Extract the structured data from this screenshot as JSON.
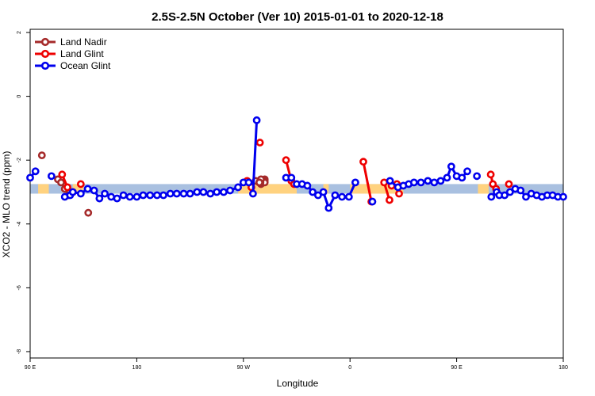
{
  "chart_data": {
    "type": "line",
    "title": "2.5S-2.5N October (Ver 10)   2015-01-01 to 2020-12-18",
    "xlabel": "Longitude",
    "ylabel": "XCO2 - MLO trend (ppm)",
    "xlim": [
      0,
      1
    ],
    "ylim": [
      -8.2,
      2.1
    ],
    "x_ticks": [
      {
        "pos": 0.0,
        "label": "90 E"
      },
      {
        "pos": 0.2,
        "label": "180"
      },
      {
        "pos": 0.4,
        "label": "90 W"
      },
      {
        "pos": 0.6,
        "label": "0"
      },
      {
        "pos": 0.8,
        "label": "90 E"
      },
      {
        "pos": 1.0,
        "label": "180"
      }
    ],
    "y_ticks": [
      {
        "value": 2,
        "label": "2"
      },
      {
        "value": 0,
        "label": "0"
      },
      {
        "value": -2,
        "label": "-2"
      },
      {
        "value": -4,
        "label": "-4"
      },
      {
        "value": -6,
        "label": "-6"
      },
      {
        "value": -8,
        "label": "-8"
      }
    ],
    "legend": {
      "position": "top-left"
    },
    "band": {
      "ymin": -3.05,
      "ymax": -2.75,
      "color": "#a9c0e0",
      "highlight_color": "#ffd27f"
    },
    "series": [
      {
        "name": "Land Nadir",
        "color": "#a52a2a",
        "segments": [
          [
            [
              0.022,
              -1.85
            ]
          ],
          [
            [
              0.052,
              -2.6
            ],
            [
              0.058,
              -2.7
            ],
            [
              0.065,
              -2.9
            ],
            [
              0.072,
              -3.1
            ]
          ],
          [
            [
              0.109,
              -3.65
            ]
          ],
          [
            [
              0.423,
              -2.65
            ],
            [
              0.433,
              -2.75
            ]
          ],
          [
            [
              0.432,
              -2.7
            ],
            [
              0.44,
              -2.6
            ]
          ],
          [
            [
              0.43,
              -2.7
            ],
            [
              0.44,
              -2.65
            ]
          ],
          [
            [
              0.43,
              -2.7
            ]
          ],
          [
            [
              0.44,
              -2.7
            ]
          ],
          [
            [
              0.431,
              -2.7
            ]
          ],
          [
            [
              0.432,
              -2.7
            ],
            [
              0.433,
              -2.6
            ]
          ],
          [
            [
              0.43,
              -2.7
            ],
            [
              0.43,
              -2.7
            ]
          ],
          [
            [
              0.43,
              -2.7
            ]
          ]
        ]
      },
      {
        "name": "Land Glint",
        "color": "#ee0000",
        "segments": [
          [
            [
              0.06,
              -2.45
            ],
            [
              0.07,
              -2.85
            ],
            [
              0.08,
              -3.0
            ]
          ],
          [
            [
              0.095,
              -2.75
            ]
          ],
          [
            [
              0.407,
              -2.65
            ],
            [
              0.415,
              -2.85
            ]
          ],
          [
            [
              0.431,
              -1.45
            ]
          ],
          [
            [
              0.48,
              -2.0
            ],
            [
              0.49,
              -2.65
            ]
          ],
          [
            [
              0.495,
              -2.75
            ]
          ],
          [
            [
              0.625,
              -2.05
            ],
            [
              0.64,
              -3.3
            ]
          ],
          [
            [
              0.664,
              -2.7
            ],
            [
              0.674,
              -3.25
            ]
          ],
          [
            [
              0.678,
              -2.8
            ],
            [
              0.688,
              -2.75
            ]
          ],
          [
            [
              0.692,
              -3.05
            ]
          ],
          [
            [
              0.864,
              -2.45
            ],
            [
              0.868,
              -2.75
            ],
            [
              0.874,
              -2.9
            ]
          ],
          [
            [
              0.898,
              -2.75
            ]
          ]
        ]
      },
      {
        "name": "Ocean Glint",
        "color": "#0000ee",
        "segments": [
          [
            [
              0.0,
              -2.55
            ],
            [
              0.01,
              -2.35
            ]
          ],
          [
            [
              0.04,
              -2.5
            ]
          ],
          [
            [
              0.065,
              -3.15
            ],
            [
              0.075,
              -3.1
            ]
          ],
          [
            [
              0.08,
              -3.0
            ],
            [
              0.095,
              -3.05
            ],
            [
              0.108,
              -2.9
            ],
            [
              0.12,
              -2.95
            ],
            [
              0.13,
              -3.2
            ],
            [
              0.14,
              -3.05
            ],
            [
              0.152,
              -3.15
            ],
            [
              0.163,
              -3.2
            ],
            [
              0.175,
              -3.1
            ],
            [
              0.187,
              -3.15
            ],
            [
              0.2,
              -3.15
            ],
            [
              0.212,
              -3.1
            ],
            [
              0.225,
              -3.1
            ],
            [
              0.238,
              -3.1
            ],
            [
              0.25,
              -3.1
            ],
            [
              0.263,
              -3.05
            ],
            [
              0.275,
              -3.05
            ],
            [
              0.288,
              -3.05
            ],
            [
              0.3,
              -3.05
            ],
            [
              0.313,
              -3.0
            ],
            [
              0.325,
              -3.0
            ],
            [
              0.338,
              -3.05
            ],
            [
              0.35,
              -3.0
            ],
            [
              0.363,
              -3.0
            ],
            [
              0.375,
              -2.95
            ],
            [
              0.39,
              -2.85
            ],
            [
              0.4,
              -2.7
            ],
            [
              0.41,
              -2.7
            ]
          ],
          [
            [
              0.418,
              -3.05
            ],
            [
              0.425,
              -0.75
            ]
          ],
          [
            [
              0.48,
              -2.55
            ],
            [
              0.49,
              -2.55
            ]
          ],
          [
            [
              0.5,
              -2.75
            ],
            [
              0.51,
              -2.75
            ],
            [
              0.52,
              -2.8
            ],
            [
              0.53,
              -3.0
            ],
            [
              0.54,
              -3.1
            ],
            [
              0.55,
              -3.0
            ],
            [
              0.56,
              -3.5
            ],
            [
              0.572,
              -3.1
            ],
            [
              0.585,
              -3.15
            ],
            [
              0.598,
              -3.15
            ],
            [
              0.61,
              -2.7
            ]
          ],
          [
            [
              0.642,
              -3.3
            ]
          ],
          [
            [
              0.675,
              -2.65
            ],
            [
              0.69,
              -2.85
            ],
            [
              0.7,
              -2.8
            ],
            [
              0.71,
              -2.75
            ],
            [
              0.72,
              -2.7
            ],
            [
              0.733,
              -2.7
            ],
            [
              0.746,
              -2.65
            ],
            [
              0.758,
              -2.7
            ],
            [
              0.77,
              -2.65
            ],
            [
              0.782,
              -2.55
            ],
            [
              0.79,
              -2.2
            ],
            [
              0.8,
              -2.5
            ],
            [
              0.81,
              -2.55
            ],
            [
              0.82,
              -2.35
            ]
          ],
          [
            [
              0.838,
              -2.5
            ]
          ],
          [
            [
              0.865,
              -3.15
            ],
            [
              0.875,
              -3.0
            ]
          ],
          [
            [
              0.88,
              -3.1
            ],
            [
              0.89,
              -3.1
            ],
            [
              0.9,
              -3.0
            ],
            [
              0.91,
              -2.9
            ],
            [
              0.92,
              -2.95
            ],
            [
              0.93,
              -3.15
            ],
            [
              0.94,
              -3.05
            ],
            [
              0.95,
              -3.1
            ],
            [
              0.96,
              -3.15
            ],
            [
              0.97,
              -3.1
            ],
            [
              0.98,
              -3.1
            ],
            [
              0.99,
              -3.15
            ],
            [
              1.0,
              -3.15
            ]
          ]
        ]
      }
    ]
  }
}
